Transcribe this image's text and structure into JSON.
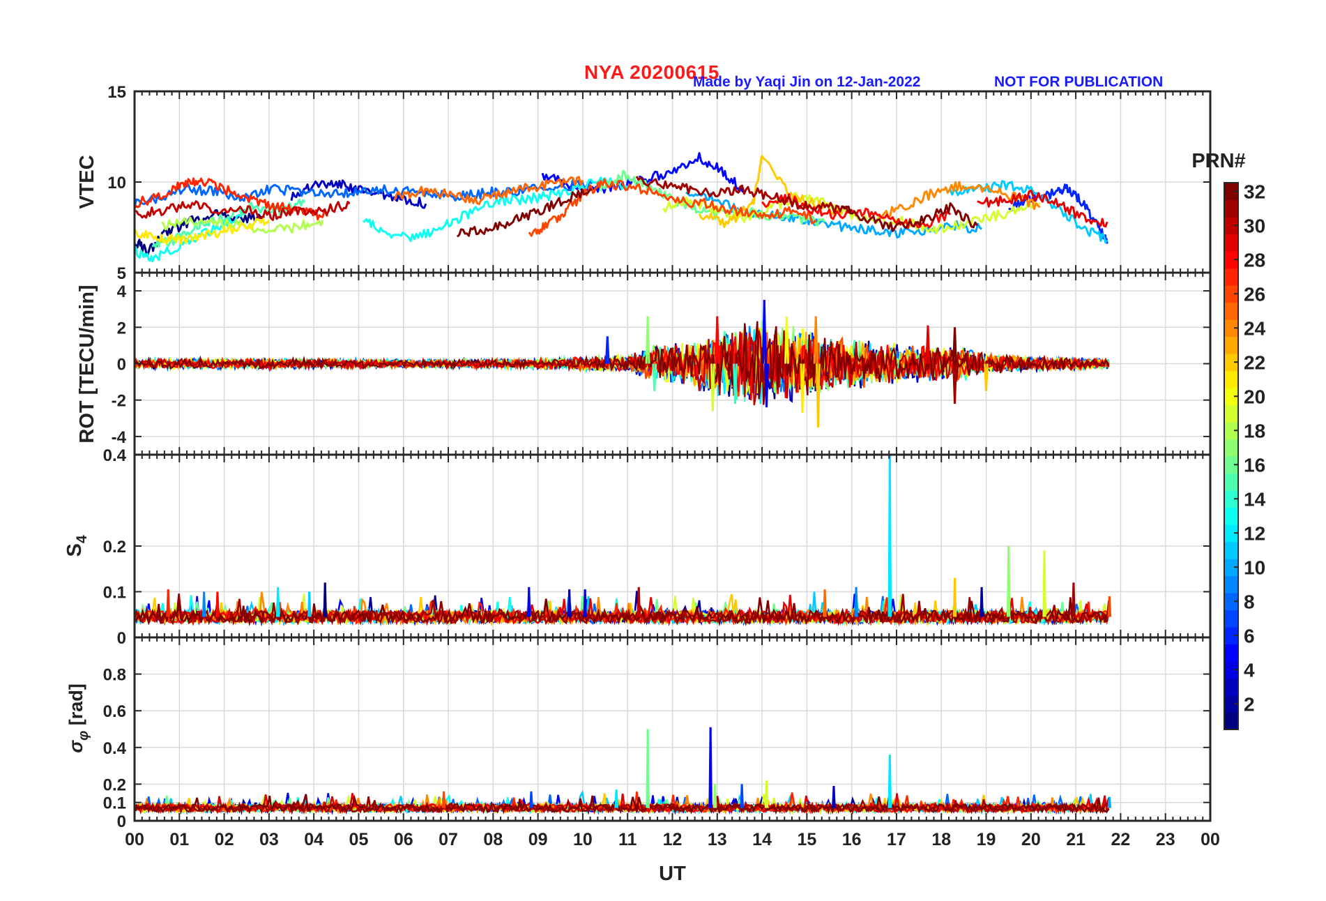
{
  "header": {
    "title": "NYA   20200615",
    "credit": "Made by Yaqi Jin on 12-Jan-2022",
    "notice": "NOT FOR PUBLICATION",
    "title_color": "#ff1a1a",
    "credit_color": "#1a1aff"
  },
  "colorbar": {
    "label": "PRN#",
    "min": 1,
    "max": 32,
    "ticks": [
      "2",
      "4",
      "6",
      "8",
      "10",
      "12",
      "14",
      "16",
      "18",
      "20",
      "22",
      "24",
      "26",
      "28",
      "30",
      "32"
    ],
    "colormap": "jet"
  },
  "chart_data": [
    {
      "type": "line",
      "panel": "VTEC",
      "ylabel": "VTEC",
      "ylim": [
        5,
        15
      ],
      "yticks": [
        "5",
        "10",
        "15"
      ],
      "xlim": [
        0,
        24
      ],
      "grid": true,
      "series": [
        {
          "prn": 1,
          "x": [
            0,
            0.3,
            0.7,
            1.2,
            1.8,
            2.3,
            2.9
          ],
          "y": [
            6.8,
            6.1,
            7.2,
            7.8,
            8.2,
            7.9,
            8.1
          ]
        },
        {
          "prn": 3,
          "x": [
            3.5,
            4.0,
            4.5,
            5.0,
            5.5,
            6.0,
            6.5
          ],
          "y": [
            9.2,
            9.8,
            9.9,
            9.6,
            9.4,
            9.0,
            8.8
          ]
        },
        {
          "prn": 5,
          "x": [
            9.1,
            9.7,
            10.3,
            10.8,
            11.4,
            12.0,
            12.6,
            13.1,
            13.6
          ],
          "y": [
            10.4,
            9.9,
            9.6,
            9.8,
            10.2,
            10.5,
            11.4,
            10.6,
            9.5
          ]
        },
        {
          "prn": 6,
          "x": [
            19.5,
            20.0,
            20.5,
            20.8,
            21.1,
            21.5,
            21.7
          ],
          "y": [
            8.5,
            9.1,
            9.4,
            9.7,
            9.0,
            7.6,
            6.6
          ]
        },
        {
          "prn": 8,
          "x": [
            0,
            0.6,
            1.2,
            1.8,
            2.4,
            3.0,
            3.6,
            4.2,
            4.8,
            5.4,
            6.0,
            6.6,
            7.2,
            7.8,
            8.4,
            9.0,
            9.6,
            10.2
          ],
          "y": [
            8.8,
            9.2,
            9.6,
            9.5,
            9.2,
            9.6,
            9.5,
            9.3,
            9.4,
            9.6,
            9.5,
            9.3,
            9.2,
            9.4,
            9.5,
            9.6,
            9.8,
            9.9
          ]
        },
        {
          "prn": 10,
          "x": [
            12.3,
            12.9,
            13.5,
            14.1,
            14.7,
            15.3,
            15.9,
            16.5,
            17.1,
            17.7,
            18.3,
            18.9
          ],
          "y": [
            9.3,
            9.1,
            8.4,
            8.2,
            7.9,
            7.8,
            7.5,
            7.3,
            7.2,
            7.3,
            7.6,
            7.4
          ]
        },
        {
          "prn": 11,
          "x": [
            18.2,
            18.8,
            19.4,
            20.0,
            20.6,
            21.2,
            21.7
          ],
          "y": [
            9.4,
            9.6,
            9.8,
            9.6,
            8.6,
            7.4,
            6.8
          ]
        },
        {
          "prn": 13,
          "x": [
            0,
            0.4,
            0.9,
            1.4,
            1.9,
            2.5
          ],
          "y": [
            6.2,
            5.7,
            6.4,
            6.9,
            7.6,
            8.3
          ]
        },
        {
          "prn": 13,
          "x": [
            5.1,
            5.6,
            6.2,
            6.8,
            7.4,
            8.0,
            8.6,
            9.2,
            9.8,
            10.4,
            11.0
          ],
          "y": [
            7.9,
            7.2,
            7.0,
            7.4,
            8.2,
            8.9,
            9.0,
            9.2,
            9.6,
            10.1,
            9.8
          ]
        },
        {
          "prn": 15,
          "x": [
            0.4,
            0.9,
            1.4,
            2.0,
            2.6,
            3.2,
            3.8
          ],
          "y": [
            6.6,
            6.8,
            7.6,
            8.1,
            8.6,
            8.4,
            8.9
          ]
        },
        {
          "prn": 16,
          "x": [
            10.4,
            10.9,
            11.4,
            11.9,
            12.4,
            13.0,
            13.6,
            14.2,
            14.8,
            15.4
          ],
          "y": [
            9.6,
            10.4,
            9.8,
            9.2,
            8.6,
            8.2,
            8.4,
            8.1,
            8.0,
            7.8
          ]
        },
        {
          "prn": 18,
          "x": [
            0.6,
            1.2,
            1.8,
            2.4,
            3.0,
            3.6,
            4.2
          ],
          "y": [
            7.5,
            7.9,
            7.8,
            7.6,
            7.3,
            7.5,
            7.9
          ]
        },
        {
          "prn": 19,
          "x": [
            11.8,
            12.4,
            13.0,
            13.6,
            14.2,
            14.8,
            15.4,
            16.0,
            16.6,
            17.2,
            17.8,
            18.4,
            19.0,
            19.6,
            20.2
          ],
          "y": [
            8.6,
            9.0,
            8.4,
            8.0,
            8.6,
            9.2,
            8.8,
            8.2,
            8.0,
            7.8,
            7.4,
            7.6,
            8.0,
            8.4,
            8.8
          ]
        },
        {
          "prn": 21,
          "x": [
            0,
            0.5,
            1.0,
            1.5,
            2.0,
            2.5,
            3.0
          ],
          "y": [
            7.2,
            6.9,
            6.8,
            7.0,
            7.3,
            7.6,
            7.9
          ]
        },
        {
          "prn": 22,
          "x": [
            12.6,
            13.2,
            13.8,
            14.0,
            14.6,
            15.2,
            15.8
          ],
          "y": [
            8.3,
            7.6,
            8.8,
            11.3,
            9.4,
            8.8,
            8.3
          ]
        },
        {
          "prn": 24,
          "x": [
            16.6,
            17.2,
            17.8,
            18.4,
            19.0,
            19.6,
            20.2
          ],
          "y": [
            8.2,
            8.6,
            9.4,
            9.8,
            9.6,
            9.2,
            8.6
          ]
        },
        {
          "prn": 25,
          "x": [
            5.8,
            6.4,
            7.0,
            7.6,
            8.2,
            8.8,
            9.4,
            10.0
          ],
          "y": [
            9.2,
            9.5,
            9.3,
            9.0,
            9.4,
            9.7,
            9.9,
            10.1
          ]
        },
        {
          "prn": 26,
          "x": [
            8.8,
            9.2,
            9.6,
            10.0,
            10.4,
            11.0,
            11.6,
            12.2,
            12.8,
            13.4,
            14.0,
            14.6,
            15.2
          ],
          "y": [
            7.1,
            7.6,
            8.4,
            9.3,
            9.9,
            9.8,
            9.4,
            8.9,
            8.8,
            8.4,
            8.1,
            8.4,
            7.9
          ]
        },
        {
          "prn": 27,
          "x": [
            0,
            0.5,
            1.0,
            1.4,
            1.8,
            2.3,
            2.8,
            3.3,
            3.8,
            4.3
          ],
          "y": [
            8.8,
            9.2,
            9.8,
            10.1,
            9.8,
            9.3,
            8.8,
            8.6,
            8.3,
            8.1
          ]
        },
        {
          "prn": 28,
          "x": [
            14.0,
            14.6,
            15.2,
            15.8,
            16.4,
            17.0,
            17.6,
            18.2
          ],
          "y": [
            8.7,
            9.1,
            8.4,
            8.1,
            8.3,
            7.8,
            7.6,
            8.2
          ]
        },
        {
          "prn": 29,
          "x": [
            18.8,
            19.4,
            20.0,
            20.6,
            21.2,
            21.7
          ],
          "y": [
            8.8,
            9.0,
            9.3,
            8.8,
            8.0,
            7.8
          ]
        },
        {
          "prn": 30,
          "x": [
            0,
            0.6,
            1.2,
            1.8,
            2.4,
            3.0,
            3.6,
            4.2,
            4.8
          ],
          "y": [
            8.2,
            8.4,
            8.8,
            8.4,
            8.6,
            8.1,
            8.5,
            8.4,
            8.8
          ]
        },
        {
          "prn": 31,
          "x": [
            11.2,
            11.8,
            12.4,
            13.0,
            13.6,
            14.2,
            14.8,
            15.4,
            16.0
          ],
          "y": [
            10.1,
            9.8,
            9.6,
            9.4,
            9.6,
            9.2,
            8.8,
            8.6,
            8.5
          ]
        },
        {
          "prn": 32,
          "x": [
            7.2,
            7.8,
            8.4,
            9.0,
            9.6,
            10.2
          ],
          "y": [
            7.2,
            7.4,
            7.8,
            8.4,
            9.0,
            9.6
          ]
        },
        {
          "prn": 32,
          "x": [
            15.8,
            16.4,
            17.0,
            17.6,
            18.2,
            18.8
          ],
          "y": [
            8.6,
            7.9,
            7.5,
            7.9,
            8.6,
            7.6
          ]
        }
      ]
    },
    {
      "type": "line",
      "panel": "ROT",
      "ylabel": "ROT [TECU/min]",
      "ylim": [
        -5,
        5
      ],
      "yticks": [
        "-4",
        "-2",
        "0",
        "2",
        "4"
      ],
      "xlim": [
        0,
        24
      ],
      "grid": true,
      "noise_amplitude": [
        [
          0,
          0.3
        ],
        [
          3,
          0.3
        ],
        [
          6,
          0.25
        ],
        [
          9,
          0.3
        ],
        [
          11,
          0.5
        ],
        [
          11.5,
          1.0
        ],
        [
          12.5,
          1.5
        ],
        [
          13,
          2.0
        ],
        [
          14,
          2.5
        ],
        [
          15,
          2.2
        ],
        [
          15.5,
          1.6
        ],
        [
          16.5,
          1.3
        ],
        [
          17.5,
          1.2
        ],
        [
          18.5,
          1.0
        ],
        [
          19,
          0.6
        ],
        [
          20,
          0.45
        ],
        [
          21,
          0.35
        ],
        [
          21.75,
          0.3
        ]
      ],
      "spikes": [
        {
          "prn": 6,
          "x": 10.55,
          "y": 1.5
        },
        {
          "prn": 17,
          "x": 11.45,
          "y": 2.6
        },
        {
          "prn": 15,
          "x": 11.6,
          "y": -1.5
        },
        {
          "prn": 19,
          "x": 12.9,
          "y": -2.6
        },
        {
          "prn": 28,
          "x": 13.0,
          "y": 2.6
        },
        {
          "prn": 14,
          "x": 13.4,
          "y": -2.2
        },
        {
          "prn": 5,
          "x": 14.05,
          "y": 3.5
        },
        {
          "prn": 4,
          "x": 14.1,
          "y": -2.4
        },
        {
          "prn": 20,
          "x": 14.55,
          "y": 2.6
        },
        {
          "prn": 21,
          "x": 14.9,
          "y": -2.7
        },
        {
          "prn": 24,
          "x": 15.2,
          "y": 2.6
        },
        {
          "prn": 22,
          "x": 15.25,
          "y": -3.5
        },
        {
          "prn": 29,
          "x": 17.7,
          "y": 2.1
        },
        {
          "prn": 32,
          "x": 18.3,
          "y": 2.0
        },
        {
          "prn": 31,
          "x": 18.3,
          "y": -2.2
        },
        {
          "prn": 22,
          "x": 19.0,
          "y": -1.5
        }
      ]
    },
    {
      "type": "line",
      "panel": "S4",
      "ylabel": "S4",
      "ylim": [
        0,
        0.4
      ],
      "yticks": [
        "0",
        "0.1",
        "0.2",
        "0.4"
      ],
      "xlim": [
        0,
        24
      ],
      "grid": true,
      "baseline": 0.045,
      "spikes": [
        {
          "prn": 27,
          "x": 0.75,
          "y": 0.105
        },
        {
          "prn": 9,
          "x": 1.55,
          "y": 0.1
        },
        {
          "prn": 28,
          "x": 1.85,
          "y": 0.1
        },
        {
          "prn": 12,
          "x": 3.2,
          "y": 0.11
        },
        {
          "prn": 11,
          "x": 3.9,
          "y": 0.1
        },
        {
          "prn": 1,
          "x": 4.25,
          "y": 0.12
        },
        {
          "prn": 5,
          "x": 8.8,
          "y": 0.11
        },
        {
          "prn": 3,
          "x": 9.7,
          "y": 0.105
        },
        {
          "prn": 4,
          "x": 10.05,
          "y": 0.105
        },
        {
          "prn": 30,
          "x": 11.25,
          "y": 0.11
        },
        {
          "prn": 25,
          "x": 15.4,
          "y": 0.105
        },
        {
          "prn": 9,
          "x": 16.1,
          "y": 0.11
        },
        {
          "prn": 12,
          "x": 16.85,
          "y": 0.4
        },
        {
          "prn": 22,
          "x": 18.3,
          "y": 0.13
        },
        {
          "prn": 2,
          "x": 18.9,
          "y": 0.11
        },
        {
          "prn": 17,
          "x": 19.5,
          "y": 0.2
        },
        {
          "prn": 19,
          "x": 20.3,
          "y": 0.19
        },
        {
          "prn": 31,
          "x": 20.95,
          "y": 0.12
        },
        {
          "prn": 26,
          "x": 21.75,
          "y": 0.09
        }
      ]
    },
    {
      "type": "line",
      "panel": "sigma_phi",
      "ylabel": "σ φ [rad]",
      "ylim": [
        0,
        1.0
      ],
      "yticks": [
        "0",
        "0.1",
        "0.2",
        "0.4",
        "0.6",
        "0.8"
      ],
      "xlim": [
        0,
        24
      ],
      "grid": true,
      "baseline": 0.07,
      "spikes": [
        {
          "prn": 26,
          "x": 6.9,
          "y": 0.16
        },
        {
          "prn": 7,
          "x": 8.85,
          "y": 0.16
        },
        {
          "prn": 12,
          "x": 10.75,
          "y": 0.17
        },
        {
          "prn": 16,
          "x": 11.45,
          "y": 0.5
        },
        {
          "prn": 5,
          "x": 12.85,
          "y": 0.51
        },
        {
          "prn": 17,
          "x": 12.95,
          "y": 0.2
        },
        {
          "prn": 7,
          "x": 13.55,
          "y": 0.2
        },
        {
          "prn": 19,
          "x": 14.1,
          "y": 0.22
        },
        {
          "prn": 3,
          "x": 15.6,
          "y": 0.19
        },
        {
          "prn": 12,
          "x": 16.85,
          "y": 0.36
        },
        {
          "prn": 10,
          "x": 21.75,
          "y": 0.13
        }
      ]
    }
  ],
  "xaxis": {
    "label": "UT",
    "ticks": [
      "00",
      "01",
      "02",
      "03",
      "04",
      "05",
      "06",
      "07",
      "08",
      "09",
      "10",
      "11",
      "12",
      "13",
      "14",
      "15",
      "16",
      "17",
      "18",
      "19",
      "20",
      "21",
      "22",
      "23",
      "00"
    ]
  }
}
